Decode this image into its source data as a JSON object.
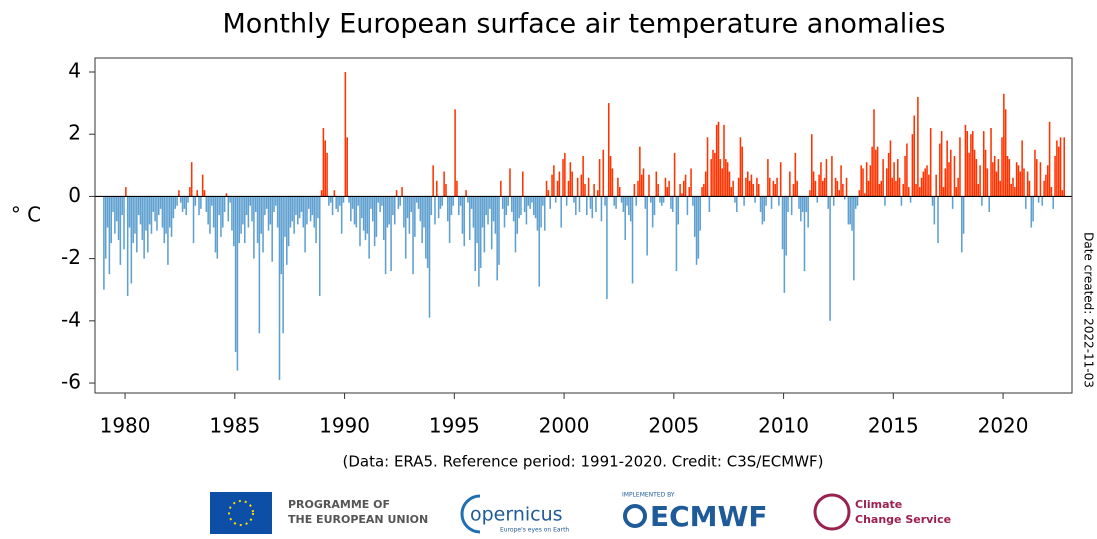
{
  "chart_data": {
    "type": "bar",
    "title": "Monthly European surface air temperature anomalies",
    "y_label": "° C",
    "footnote": "(Data: ERA5.  Reference period: 1991-2020.  Credit: C3S/ECMWF)",
    "side_note": "Date created: 2022-11-03",
    "positive_color": "#ff3300",
    "negative_color": "#5fa0d0",
    "xlim": [
      1978.63,
      2023.14
    ],
    "xticks": [
      1980,
      1985,
      1990,
      1995,
      2000,
      2005,
      2010,
      2015,
      2020
    ],
    "ylim": [
      -6.32,
      4.45
    ],
    "yticks": [
      -6,
      -4,
      -2,
      0,
      2,
      4
    ],
    "x": [
      "1979-01",
      "1979-02",
      "1979-03",
      "1979-04",
      "1979-05",
      "1979-06",
      "1979-07",
      "1979-08",
      "1979-09",
      "1979-10",
      "1979-11",
      "1979-12",
      "1980-01",
      "1980-02",
      "1980-03",
      "1980-04",
      "1980-05",
      "1980-06",
      "1980-07",
      "1980-08",
      "1980-09",
      "1980-10",
      "1980-11",
      "1980-12",
      "1981-01",
      "1981-02",
      "1981-03",
      "1981-04",
      "1981-05",
      "1981-06",
      "1981-07",
      "1981-08",
      "1981-09",
      "1981-10",
      "1981-11",
      "1981-12",
      "1982-01",
      "1982-02",
      "1982-03",
      "1982-04",
      "1982-05",
      "1982-06",
      "1982-07",
      "1982-08",
      "1982-09",
      "1982-10",
      "1982-11",
      "1982-12",
      "1983-01",
      "1983-02",
      "1983-03",
      "1983-04",
      "1983-05",
      "1983-06",
      "1983-07",
      "1983-08",
      "1983-09",
      "1983-10",
      "1983-11",
      "1983-12",
      "1984-01",
      "1984-02",
      "1984-03",
      "1984-04",
      "1984-05",
      "1984-06",
      "1984-07",
      "1984-08",
      "1984-09",
      "1984-10",
      "1984-11",
      "1984-12",
      "1985-01",
      "1985-02",
      "1985-03",
      "1985-04",
      "1985-05",
      "1985-06",
      "1985-07",
      "1985-08",
      "1985-09",
      "1985-10",
      "1985-11",
      "1985-12",
      "1986-01",
      "1986-02",
      "1986-03",
      "1986-04",
      "1986-05",
      "1986-06",
      "1986-07",
      "1986-08",
      "1986-09",
      "1986-10",
      "1986-11",
      "1986-12",
      "1987-01",
      "1987-02",
      "1987-03",
      "1987-04",
      "1987-05",
      "1987-06",
      "1987-07",
      "1987-08",
      "1987-09",
      "1987-10",
      "1987-11",
      "1987-12",
      "1988-01",
      "1988-02",
      "1988-03",
      "1988-04",
      "1988-05",
      "1988-06",
      "1988-07",
      "1988-08",
      "1988-09",
      "1988-10",
      "1988-11",
      "1988-12",
      "1989-01",
      "1989-02",
      "1989-03",
      "1989-04",
      "1989-05",
      "1989-06",
      "1989-07",
      "1989-08",
      "1989-09",
      "1989-10",
      "1989-11",
      "1989-12",
      "1990-01",
      "1990-02",
      "1990-03",
      "1990-04",
      "1990-05",
      "1990-06",
      "1990-07",
      "1990-08",
      "1990-09",
      "1990-10",
      "1990-11",
      "1990-12",
      "1991-01",
      "1991-02",
      "1991-03",
      "1991-04",
      "1991-05",
      "1991-06",
      "1991-07",
      "1991-08",
      "1991-09",
      "1991-10",
      "1991-11",
      "1991-12",
      "1992-01",
      "1992-02",
      "1992-03",
      "1992-04",
      "1992-05",
      "1992-06",
      "1992-07",
      "1992-08",
      "1992-09",
      "1992-10",
      "1992-11",
      "1992-12",
      "1993-01",
      "1993-02",
      "1993-03",
      "1993-04",
      "1993-05",
      "1993-06",
      "1993-07",
      "1993-08",
      "1993-09",
      "1993-10",
      "1993-11",
      "1993-12",
      "1994-01",
      "1994-02",
      "1994-03",
      "1994-04",
      "1994-05",
      "1994-06",
      "1994-07",
      "1994-08",
      "1994-09",
      "1994-10",
      "1994-11",
      "1994-12",
      "1995-01",
      "1995-02",
      "1995-03",
      "1995-04",
      "1995-05",
      "1995-06",
      "1995-07",
      "1995-08",
      "1995-09",
      "1995-10",
      "1995-11",
      "1995-12",
      "1996-01",
      "1996-02",
      "1996-03",
      "1996-04",
      "1996-05",
      "1996-06",
      "1996-07",
      "1996-08",
      "1996-09",
      "1996-10",
      "1996-11",
      "1996-12",
      "1997-01",
      "1997-02",
      "1997-03",
      "1997-04",
      "1997-05",
      "1997-06",
      "1997-07",
      "1997-08",
      "1997-09",
      "1997-10",
      "1997-11",
      "1997-12",
      "1998-01",
      "1998-02",
      "1998-03",
      "1998-04",
      "1998-05",
      "1998-06",
      "1998-07",
      "1998-08",
      "1998-09",
      "1998-10",
      "1998-11",
      "1998-12",
      "1999-01",
      "1999-02",
      "1999-03",
      "1999-04",
      "1999-05",
      "1999-06",
      "1999-07",
      "1999-08",
      "1999-09",
      "1999-10",
      "1999-11",
      "1999-12",
      "2000-01",
      "2000-02",
      "2000-03",
      "2000-04",
      "2000-05",
      "2000-06",
      "2000-07",
      "2000-08",
      "2000-09",
      "2000-10",
      "2000-11",
      "2000-12",
      "2001-01",
      "2001-02",
      "2001-03",
      "2001-04",
      "2001-05",
      "2001-06",
      "2001-07",
      "2001-08",
      "2001-09",
      "2001-10",
      "2001-11",
      "2001-12",
      "2002-01",
      "2002-02",
      "2002-03",
      "2002-04",
      "2002-05",
      "2002-06",
      "2002-07",
      "2002-08",
      "2002-09",
      "2002-10",
      "2002-11",
      "2002-12",
      "2003-01",
      "2003-02",
      "2003-03",
      "2003-04",
      "2003-05",
      "2003-06",
      "2003-07",
      "2003-08",
      "2003-09",
      "2003-10",
      "2003-11",
      "2003-12",
      "2004-01",
      "2004-02",
      "2004-03",
      "2004-04",
      "2004-05",
      "2004-06",
      "2004-07",
      "2004-08",
      "2004-09",
      "2004-10",
      "2004-11",
      "2004-12",
      "2005-01",
      "2005-02",
      "2005-03",
      "2005-04",
      "2005-05",
      "2005-06",
      "2005-07",
      "2005-08",
      "2005-09",
      "2005-10",
      "2005-11",
      "2005-12",
      "2006-01",
      "2006-02",
      "2006-03",
      "2006-04",
      "2006-05",
      "2006-06",
      "2006-07",
      "2006-08",
      "2006-09",
      "2006-10",
      "2006-11",
      "2006-12",
      "2007-01",
      "2007-02",
      "2007-03",
      "2007-04",
      "2007-05",
      "2007-06",
      "2007-07",
      "2007-08",
      "2007-09",
      "2007-10",
      "2007-11",
      "2007-12",
      "2008-01",
      "2008-02",
      "2008-03",
      "2008-04",
      "2008-05",
      "2008-06",
      "2008-07",
      "2008-08",
      "2008-09",
      "2008-10",
      "2008-11",
      "2008-12",
      "2009-01",
      "2009-02",
      "2009-03",
      "2009-04",
      "2009-05",
      "2009-06",
      "2009-07",
      "2009-08",
      "2009-09",
      "2009-10",
      "2009-11",
      "2009-12",
      "2010-01",
      "2010-02",
      "2010-03",
      "2010-04",
      "2010-05",
      "2010-06",
      "2010-07",
      "2010-08",
      "2010-09",
      "2010-10",
      "2010-11",
      "2010-12",
      "2011-01",
      "2011-02",
      "2011-03",
      "2011-04",
      "2011-05",
      "2011-06",
      "2011-07",
      "2011-08",
      "2011-09",
      "2011-10",
      "2011-11",
      "2011-12",
      "2012-01",
      "2012-02",
      "2012-03",
      "2012-04",
      "2012-05",
      "2012-06",
      "2012-07",
      "2012-08",
      "2012-09",
      "2012-10",
      "2012-11",
      "2012-12",
      "2013-01",
      "2013-02",
      "2013-03",
      "2013-04",
      "2013-05",
      "2013-06",
      "2013-07",
      "2013-08",
      "2013-09",
      "2013-10",
      "2013-11",
      "2013-12",
      "2014-01",
      "2014-02",
      "2014-03",
      "2014-04",
      "2014-05",
      "2014-06",
      "2014-07",
      "2014-08",
      "2014-09",
      "2014-10",
      "2014-11",
      "2014-12",
      "2015-01",
      "2015-02",
      "2015-03",
      "2015-04",
      "2015-05",
      "2015-06",
      "2015-07",
      "2015-08",
      "2015-09",
      "2015-10",
      "2015-11",
      "2015-12",
      "2016-01",
      "2016-02",
      "2016-03",
      "2016-04",
      "2016-05",
      "2016-06",
      "2016-07",
      "2016-08",
      "2016-09",
      "2016-10",
      "2016-11",
      "2016-12",
      "2017-01",
      "2017-02",
      "2017-03",
      "2017-04",
      "2017-05",
      "2017-06",
      "2017-07",
      "2017-08",
      "2017-09",
      "2017-10",
      "2017-11",
      "2017-12",
      "2018-01",
      "2018-02",
      "2018-03",
      "2018-04",
      "2018-05",
      "2018-06",
      "2018-07",
      "2018-08",
      "2018-09",
      "2018-10",
      "2018-11",
      "2018-12",
      "2019-01",
      "2019-02",
      "2019-03",
      "2019-04",
      "2019-05",
      "2019-06",
      "2019-07",
      "2019-08",
      "2019-09",
      "2019-10",
      "2019-11",
      "2019-12",
      "2020-01",
      "2020-02",
      "2020-03",
      "2020-04",
      "2020-05",
      "2020-06",
      "2020-07",
      "2020-08",
      "2020-09",
      "2020-10",
      "2020-11",
      "2020-12",
      "2021-01",
      "2021-02",
      "2021-03",
      "2021-04",
      "2021-05",
      "2021-06",
      "2021-07",
      "2021-08",
      "2021-09",
      "2021-10",
      "2021-11",
      "2021-12",
      "2022-01",
      "2022-02",
      "2022-03",
      "2022-04",
      "2022-05",
      "2022-06",
      "2022-07",
      "2022-08",
      "2022-09",
      "2022-10"
    ],
    "values": [
      -3.0,
      -2.0,
      -1.0,
      -2.5,
      -1.5,
      -0.5,
      -1.2,
      -0.8,
      -1.4,
      -2.2,
      -0.6,
      -1.7,
      0.3,
      -3.2,
      -1.0,
      -2.8,
      -1.5,
      -1.2,
      -1.8,
      -0.6,
      -0.9,
      -1.4,
      -2.0,
      -1.1,
      -1.8,
      -0.9,
      -1.2,
      -0.5,
      -0.8,
      -1.1,
      -0.6,
      -0.4,
      -1.0,
      -1.5,
      -1.2,
      -2.2,
      -1.0,
      -1.3,
      -0.7,
      -0.4,
      -0.3,
      0.2,
      -0.2,
      -0.5,
      -0.4,
      -0.6,
      -0.2,
      0.3,
      1.1,
      -1.5,
      -0.3,
      0.2,
      -0.6,
      -0.4,
      0.7,
      0.2,
      -0.5,
      -0.9,
      -1.2,
      -0.3,
      -1.0,
      -1.8,
      -2.0,
      -0.6,
      -1.3,
      -1.0,
      -0.5,
      0.1,
      -0.8,
      -0.2,
      -1.1,
      -1.6,
      -5.0,
      -5.6,
      -1.5,
      -1.2,
      -0.9,
      -1.5,
      -0.6,
      -1.0,
      -0.3,
      -0.8,
      -2.0,
      -0.5,
      -1.5,
      -4.4,
      -1.2,
      -1.8,
      -0.6,
      -0.4,
      -1.1,
      -0.9,
      -2.1,
      -0.5,
      -0.3,
      -1.0,
      -5.9,
      -2.5,
      -4.4,
      -1.3,
      -2.2,
      -1.6,
      -1.0,
      -0.8,
      -1.2,
      -0.6,
      -0.9,
      -0.7,
      -0.5,
      -1.0,
      -1.8,
      -0.9,
      -0.4,
      -0.8,
      -0.6,
      -1.0,
      -1.5,
      -0.7,
      -3.2,
      0.2,
      2.2,
      1.8,
      1.4,
      -0.3,
      -0.2,
      -0.6,
      0.2,
      -0.4,
      -0.5,
      -0.3,
      -1.2,
      -0.2,
      4.0,
      1.9,
      -0.2,
      -0.8,
      -0.4,
      -0.9,
      -1.0,
      -0.3,
      -1.6,
      -0.7,
      -1.1,
      -1.4,
      -1.2,
      -2.0,
      -0.4,
      -0.8,
      -1.6,
      -1.3,
      -0.2,
      -0.5,
      -0.3,
      -1.4,
      -2.5,
      -1.0,
      -0.9,
      -2.4,
      -0.6,
      -0.9,
      0.2,
      -0.4,
      -0.3,
      0.3,
      -1.0,
      -2.0,
      -0.7,
      -1.2,
      -0.5,
      -2.5,
      -1.3,
      -0.2,
      -0.4,
      -0.8,
      -1.5,
      -1.0,
      -2.0,
      -2.3,
      -3.9,
      -0.6,
      1.0,
      -0.9,
      0.5,
      -0.7,
      -0.4,
      -0.3,
      0.8,
      0.4,
      -0.8,
      -1.5,
      -0.6,
      -0.3,
      2.8,
      0.5,
      -0.6,
      -0.3,
      -1.2,
      -1.6,
      0.2,
      -0.2,
      -1.4,
      -0.4,
      -1.0,
      -2.4,
      -1.5,
      -2.9,
      -2.3,
      -1.0,
      -1.8,
      -0.6,
      -0.9,
      -0.4,
      -1.7,
      -0.8,
      -1.2,
      -2.7,
      -2.2,
      0.5,
      -0.4,
      -1.0,
      -0.6,
      -0.3,
      0.9,
      -0.5,
      -0.8,
      -1.8,
      -1.2,
      -0.7,
      -0.6,
      0.8,
      -0.5,
      -0.9,
      -0.3,
      -0.4,
      -0.2,
      -0.6,
      -0.7,
      -1.1,
      -2.9,
      -1.0,
      -0.3,
      -1.1,
      0.5,
      0.2,
      -0.4,
      0.7,
      1.0,
      -0.2,
      0.5,
      0.8,
      -1.0,
      1.2,
      1.4,
      -0.3,
      0.5,
      1.1,
      0.8,
      -0.2,
      -0.6,
      0.6,
      -0.5,
      0.7,
      1.3,
      0.4,
      -0.6,
      0.6,
      -0.4,
      -0.7,
      0.4,
      -0.5,
      0.2,
      1.2,
      -0.8,
      1.5,
      -0.3,
      -3.3,
      3.0,
      1.3,
      0.9,
      -0.3,
      -0.4,
      0.6,
      0.3,
      -0.2,
      -0.5,
      -1.4,
      -0.3,
      -0.6,
      -0.8,
      -2.8,
      0.4,
      -0.3,
      0.5,
      1.6,
      0.7,
      0.9,
      -0.4,
      -1.9,
      0.7,
      -0.2,
      -1.0,
      -0.6,
      0.8,
      0.4,
      -0.2,
      -0.3,
      -0.2,
      0.6,
      0.3,
      0.5,
      -0.4,
      -0.5,
      1.4,
      -2.4,
      -0.9,
      0.4,
      0.1,
      0.5,
      0.7,
      -0.6,
      0.3,
      0.9,
      -0.3,
      -1.3,
      -2.2,
      -2.0,
      -1.1,
      0.3,
      0.4,
      0.8,
      1.9,
      -0.5,
      1.2,
      1.5,
      1.4,
      2.3,
      2.4,
      1.2,
      0.9,
      2.3,
      1.2,
      1.1,
      0.8,
      0.3,
      0.5,
      -0.2,
      -0.5,
      0.6,
      1.9,
      1.6,
      -0.3,
      0.6,
      0.8,
      0.5,
      0.7,
      0.4,
      -0.2,
      0.6,
      0.4,
      -0.5,
      -0.9,
      -0.8,
      -0.3,
      1.2,
      0.6,
      -0.4,
      0.5,
      0.4,
      0.6,
      -0.3,
      1.1,
      -1.7,
      -3.1,
      -1.9,
      -0.5,
      0.8,
      -0.6,
      0.4,
      1.4,
      0.5,
      -0.4,
      -0.8,
      -0.5,
      -2.4,
      -0.5,
      -1.0,
      0.2,
      2.0,
      0.8,
      0.5,
      -0.2,
      0.7,
      1.1,
      0.5,
      0.6,
      1.2,
      -0.4,
      -4.0,
      1.3,
      -0.3,
      0.6,
      0.5,
      0.2,
      1.0,
      0.4,
      -0.1,
      0.6,
      -0.9,
      -0.9,
      -1.1,
      -2.7,
      -0.4,
      -0.3,
      0.2,
      1.0,
      0.9,
      0.1,
      1.1,
      0.5,
      1.0,
      1.6,
      2.8,
      1.5,
      1.6,
      0.4,
      0.5,
      1.2,
      -0.3,
      0.9,
      1.4,
      1.8,
      0.6,
      1.1,
      0.5,
      1.2,
      0.6,
      -0.3,
      0.4,
      1.3,
      1.7,
      0.3,
      -0.2,
      2.0,
      2.6,
      0.4,
      3.2,
      0.3,
      0.6,
      0.8,
      0.9,
      1.0,
      0.7,
      2.2,
      -0.3,
      -0.9,
      0.7,
      -1.5,
      1.7,
      2.1,
      0.3,
      0.9,
      1.8,
      1.1,
      1.5,
      -0.4,
      1.3,
      0.3,
      0.6,
      1.9,
      -1.8,
      -1.2,
      2.3,
      2.1,
      1.4,
      2.0,
      2.1,
      1.5,
      1.2,
      0.4,
      1.0,
      -0.3,
      2.1,
      1.5,
      0.9,
      -0.5,
      2.2,
      1.1,
      1.3,
      0.8,
      1.2,
      0.5,
      1.9,
      3.3,
      2.8,
      1.3,
      1.2,
      0.4,
      0.6,
      0.3,
      1.1,
      1.0,
      0.8,
      1.8,
      0.9,
      -0.4,
      0.8,
      0.5,
      -1.0,
      -0.8,
      1.5,
      1.2,
      -0.2,
      1.1,
      -0.3,
      0.5,
      0.7,
      1.0,
      2.4,
      0.3,
      -0.4,
      1.3,
      1.8,
      1.6,
      1.9,
      0.2,
      1.9
    ]
  },
  "logos": {
    "eu_line1": "PROGRAMME OF",
    "eu_line2": "THE EUROPEAN UNION",
    "copernicus": "opernicus",
    "copernicus_tagline": "Europe's eyes on Earth",
    "ecmwf_small": "IMPLEMENTED BY",
    "ecmwf": "ECMWF",
    "c3s_line1": "Climate",
    "c3s_line2": "Change Service"
  }
}
